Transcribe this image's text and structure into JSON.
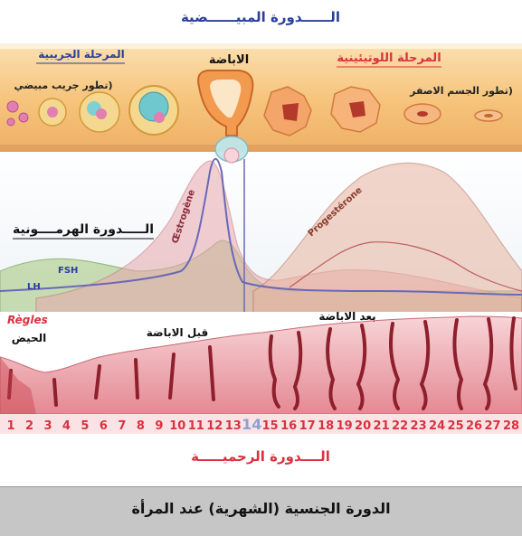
{
  "titles": {
    "ovarian_cycle": "الــــــدورة المبيــــــضية",
    "hormonal_cycle": "الـــــدورة الهرمــــونية",
    "uterine_cycle": "الــــدورة الرحميـــــة"
  },
  "phases": {
    "follicular": "المرحلة الجريبية",
    "follicle_growth": "(تطور جريب مبيضي",
    "ovulation": "الاباضة",
    "luteal": "المرحلة اللوتيئينية",
    "corpus_luteum": "(تطور الجسم الاصفر"
  },
  "hormones": {
    "fsh": "FSH",
    "lh": "LH",
    "estrogen": "Œstrogène",
    "progesterone": "Progestérone"
  },
  "uterus": {
    "regles": "Règles",
    "menses": "الحيض",
    "pre_ovulation": "قبل الاباضة",
    "post_ovulation": "بعد الاباضة"
  },
  "days": [
    "1",
    "2",
    "3",
    "4",
    "5",
    "6",
    "7",
    "8",
    "9",
    "10",
    "11",
    "12",
    "13",
    "14",
    "15",
    "16",
    "17",
    "18",
    "19",
    "20",
    "21",
    "22",
    "23",
    "24",
    "25",
    "26",
    "27",
    "28"
  ],
  "highlight_day": "14",
  "caption": "الدورة الجنسية (الشهرية) عند المرأة",
  "colors": {
    "ovary_band": "#f6c57e",
    "estrogen_fill": "#e8a8ad",
    "progesterone_fill": "#e8b4a0",
    "lh_line": "#6a68b8",
    "fsh_fill": "#a9c98a",
    "endometrium": "#e89ba2",
    "day_numbers": "#d8323f",
    "title_blue": "#2a3e9e",
    "title_red": "#d8323f"
  }
}
